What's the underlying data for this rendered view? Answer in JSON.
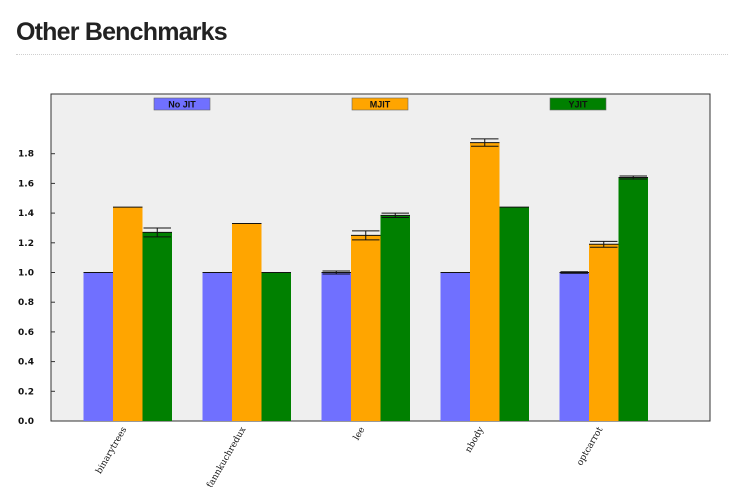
{
  "page": {
    "title": "Other Benchmarks"
  },
  "chart_data": {
    "type": "bar",
    "title": "",
    "xlabel": "",
    "ylabel": "",
    "categories": [
      "binarytrees",
      "fannkuchredux",
      "lee",
      "nbody",
      "optcarrot"
    ],
    "series": [
      {
        "name": "No JIT",
        "color": "#7070ff",
        "values": [
          1.0,
          1.0,
          1.0,
          1.0,
          1.0
        ],
        "errors": [
          0.0,
          0.0,
          0.01,
          0.0,
          0.005
        ]
      },
      {
        "name": "MJIT",
        "color": "#ffa500",
        "values": [
          1.44,
          1.33,
          1.25,
          1.875,
          1.19
        ],
        "errors": [
          0.0,
          0.0,
          0.03,
          0.025,
          0.02
        ]
      },
      {
        "name": "YJIT",
        "color": "#008000",
        "values": [
          1.27,
          1.0,
          1.385,
          1.44,
          1.64
        ],
        "errors": [
          0.03,
          0.0,
          0.015,
          0.0,
          0.01
        ]
      }
    ],
    "yticks": [
      "0.0",
      "0.2",
      "0.4",
      "0.6",
      "0.8",
      "1.0",
      "1.2",
      "1.4",
      "1.6",
      "1.8"
    ],
    "ylim": [
      0,
      2.2
    ],
    "grid": false,
    "legend_position": "top",
    "plot_background": "#efefef"
  }
}
